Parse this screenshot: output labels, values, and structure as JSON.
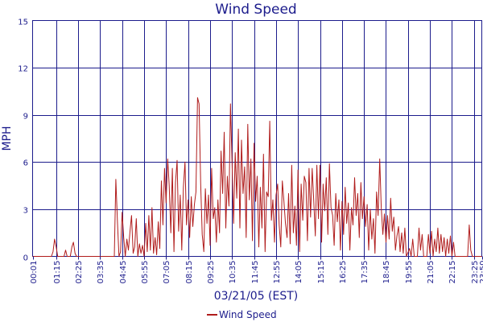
{
  "chart_data": {
    "type": "line",
    "title": "Wind Speed",
    "xlabel": "03/21/05 (EST)",
    "ylabel": "MPH",
    "ylim": [
      0,
      15
    ],
    "yticks": [
      "0",
      "3",
      "6",
      "9",
      "12",
      "15"
    ],
    "xticks": [
      "00:01",
      "01:15",
      "02:25",
      "03:35",
      "04:45",
      "05:55",
      "07:05",
      "08:15",
      "09:25",
      "10:35",
      "11:45",
      "12:55",
      "14:05",
      "15:15",
      "16:25",
      "17:35",
      "18:45",
      "19:55",
      "21:05",
      "22:15",
      "23:25",
      "23:50"
    ],
    "grid": true,
    "legend_position": "bottom",
    "colors": {
      "series": "#b01c1c",
      "grid": "#1c1c8c",
      "text": "#1c1c8c"
    },
    "series": [
      {
        "name": "Wind Speed",
        "points": [
          [
            "00:00",
            0
          ],
          [
            "01:00",
            0
          ],
          [
            "01:05",
            0.3
          ],
          [
            "01:10",
            1.1
          ],
          [
            "01:15",
            0.6
          ],
          [
            "01:20",
            0
          ],
          [
            "01:40",
            0
          ],
          [
            "01:45",
            0.4
          ],
          [
            "01:50",
            0
          ],
          [
            "02:00",
            0
          ],
          [
            "02:05",
            0.6
          ],
          [
            "02:10",
            0.9
          ],
          [
            "02:15",
            0.2
          ],
          [
            "02:20",
            0
          ],
          [
            "04:20",
            0
          ],
          [
            "04:25",
            4.9
          ],
          [
            "04:30",
            2.2
          ],
          [
            "04:35",
            0
          ],
          [
            "04:40",
            0.3
          ],
          [
            "04:45",
            2.8
          ],
          [
            "04:50",
            1.2
          ],
          [
            "04:55",
            0
          ],
          [
            "05:00",
            1.1
          ],
          [
            "05:05",
            0.4
          ],
          [
            "05:10",
            1.6
          ],
          [
            "05:15",
            2.6
          ],
          [
            "05:20",
            0.2
          ],
          [
            "05:25",
            0.6
          ],
          [
            "05:30",
            2.4
          ],
          [
            "05:35",
            0
          ],
          [
            "05:40",
            0.8
          ],
          [
            "05:45",
            0.2
          ],
          [
            "05:50",
            0.7
          ],
          [
            "05:55",
            0
          ],
          [
            "06:00",
            2.1
          ],
          [
            "06:05",
            0.3
          ],
          [
            "06:10",
            2.6
          ],
          [
            "06:15",
            0.4
          ],
          [
            "06:20",
            3.1
          ],
          [
            "06:25",
            0.2
          ],
          [
            "06:30",
            1.2
          ],
          [
            "06:35",
            0.1
          ],
          [
            "06:40",
            2.2
          ],
          [
            "06:45",
            0.5
          ],
          [
            "06:50",
            4.8
          ],
          [
            "06:55",
            2.0
          ],
          [
            "07:00",
            5.6
          ],
          [
            "07:05",
            3.4
          ],
          [
            "07:10",
            6.2
          ],
          [
            "07:15",
            4.5
          ],
          [
            "07:20",
            1.5
          ],
          [
            "07:25",
            5.6
          ],
          [
            "07:30",
            0.3
          ],
          [
            "07:35",
            4.7
          ],
          [
            "07:40",
            6.1
          ],
          [
            "07:45",
            1.6
          ],
          [
            "07:50",
            3.9
          ],
          [
            "07:55",
            0.4
          ],
          [
            "08:00",
            4.4
          ],
          [
            "08:05",
            6.0
          ],
          [
            "08:10",
            2.0
          ],
          [
            "08:15",
            3.6
          ],
          [
            "08:20",
            1.2
          ],
          [
            "08:25",
            3.8
          ],
          [
            "08:30",
            1.9
          ],
          [
            "08:35",
            3.3
          ],
          [
            "08:40",
            4.1
          ],
          [
            "08:45",
            10.1
          ],
          [
            "08:50",
            9.7
          ],
          [
            "08:55",
            4.6
          ],
          [
            "09:00",
            1.4
          ],
          [
            "09:05",
            0.3
          ],
          [
            "09:10",
            4.3
          ],
          [
            "09:15",
            2.1
          ],
          [
            "09:20",
            3.9
          ],
          [
            "09:25",
            0.7
          ],
          [
            "09:30",
            5.6
          ],
          [
            "09:35",
            2.4
          ],
          [
            "09:40",
            3.1
          ],
          [
            "09:45",
            0.9
          ],
          [
            "09:50",
            3.6
          ],
          [
            "09:55",
            1.5
          ],
          [
            "10:00",
            6.7
          ],
          [
            "10:05",
            4.0
          ],
          [
            "10:10",
            7.9
          ],
          [
            "10:15",
            1.8
          ],
          [
            "10:20",
            5.1
          ],
          [
            "10:25",
            3.2
          ],
          [
            "10:30",
            9.7
          ],
          [
            "10:35",
            5.9
          ],
          [
            "10:40",
            2.1
          ],
          [
            "10:45",
            6.6
          ],
          [
            "10:50",
            3.7
          ],
          [
            "10:55",
            8.1
          ],
          [
            "11:00",
            1.8
          ],
          [
            "11:05",
            7.4
          ],
          [
            "11:10",
            4.0
          ],
          [
            "11:15",
            5.7
          ],
          [
            "11:20",
            1.2
          ],
          [
            "11:25",
            8.4
          ],
          [
            "11:30",
            3.6
          ],
          [
            "11:35",
            6.2
          ],
          [
            "11:40",
            1.0
          ],
          [
            "11:45",
            7.2
          ],
          [
            "11:50",
            3.5
          ],
          [
            "11:55",
            5.1
          ],
          [
            "12:00",
            0.6
          ],
          [
            "12:05",
            4.4
          ],
          [
            "12:10",
            1.8
          ],
          [
            "12:15",
            6.5
          ],
          [
            "12:20",
            0.3
          ],
          [
            "12:25",
            4.1
          ],
          [
            "12:30",
            3.8
          ],
          [
            "12:35",
            8.6
          ],
          [
            "12:40",
            2.3
          ],
          [
            "12:45",
            3.6
          ],
          [
            "12:50",
            0.9
          ],
          [
            "12:55",
            3.9
          ],
          [
            "13:00",
            4.6
          ],
          [
            "13:05",
            2.0
          ],
          [
            "13:10",
            0.6
          ],
          [
            "13:15",
            4.8
          ],
          [
            "13:20",
            3.5
          ],
          [
            "13:25",
            2.1
          ],
          [
            "13:30",
            1.2
          ],
          [
            "13:35",
            4.0
          ],
          [
            "13:40",
            0.8
          ],
          [
            "13:45",
            5.8
          ],
          [
            "13:50",
            1.5
          ],
          [
            "13:55",
            3.2
          ],
          [
            "14:00",
            0.7
          ],
          [
            "14:05",
            5.5
          ],
          [
            "14:10",
            0.3
          ],
          [
            "14:15",
            4.6
          ],
          [
            "14:20",
            2.3
          ],
          [
            "14:25",
            5.1
          ],
          [
            "14:30",
            4.7
          ],
          [
            "14:35",
            1.0
          ],
          [
            "14:40",
            5.6
          ],
          [
            "14:45",
            2.5
          ],
          [
            "14:50",
            5.6
          ],
          [
            "14:55",
            3.6
          ],
          [
            "15:00",
            1.3
          ],
          [
            "15:05",
            5.8
          ],
          [
            "15:10",
            2.4
          ],
          [
            "15:15",
            5.8
          ],
          [
            "15:20",
            0.9
          ],
          [
            "15:25",
            4.6
          ],
          [
            "15:30",
            2.9
          ],
          [
            "15:35",
            5.0
          ],
          [
            "15:40",
            1.4
          ],
          [
            "15:45",
            5.9
          ],
          [
            "15:50",
            3.1
          ],
          [
            "15:55",
            2.6
          ],
          [
            "16:00",
            0.7
          ],
          [
            "16:05",
            4.0
          ],
          [
            "16:10",
            2.2
          ],
          [
            "16:15",
            3.6
          ],
          [
            "16:20",
            0.4
          ],
          [
            "16:25",
            3.5
          ],
          [
            "16:30",
            1.4
          ],
          [
            "16:35",
            4.4
          ],
          [
            "16:40",
            2.1
          ],
          [
            "16:45",
            3.4
          ],
          [
            "16:50",
            0.4
          ],
          [
            "16:55",
            3.1
          ],
          [
            "17:00",
            2.0
          ],
          [
            "17:05",
            5.0
          ],
          [
            "17:10",
            2.6
          ],
          [
            "17:15",
            4.0
          ],
          [
            "17:20",
            1.2
          ],
          [
            "17:25",
            4.7
          ],
          [
            "17:30",
            2.4
          ],
          [
            "17:35",
            3.8
          ],
          [
            "17:40",
            1.9
          ],
          [
            "17:45",
            3.3
          ],
          [
            "17:50",
            0.4
          ],
          [
            "17:55",
            3.0
          ],
          [
            "18:00",
            1.1
          ],
          [
            "18:05",
            2.4
          ],
          [
            "18:10",
            0.2
          ],
          [
            "18:15",
            4.1
          ],
          [
            "18:20",
            2.6
          ],
          [
            "18:25",
            6.2
          ],
          [
            "18:30",
            3.1
          ],
          [
            "18:35",
            1.4
          ],
          [
            "18:40",
            2.7
          ],
          [
            "18:45",
            0.9
          ],
          [
            "18:50",
            2.6
          ],
          [
            "18:55",
            1.1
          ],
          [
            "19:00",
            3.7
          ],
          [
            "19:05",
            1.6
          ],
          [
            "19:10",
            2.5
          ],
          [
            "19:15",
            0.4
          ],
          [
            "19:20",
            1.3
          ],
          [
            "19:25",
            1.9
          ],
          [
            "19:30",
            0.3
          ],
          [
            "19:35",
            1.5
          ],
          [
            "19:40",
            0.2
          ],
          [
            "19:45",
            1.8
          ],
          [
            "19:50",
            0
          ],
          [
            "20:00",
            0.5
          ],
          [
            "20:05",
            0
          ],
          [
            "20:10",
            1.1
          ],
          [
            "20:15",
            0
          ],
          [
            "20:25",
            0
          ],
          [
            "20:30",
            1.8
          ],
          [
            "20:35",
            0.4
          ],
          [
            "20:40",
            1.4
          ],
          [
            "20:45",
            0
          ],
          [
            "20:55",
            0
          ],
          [
            "21:00",
            1.4
          ],
          [
            "21:05",
            0.2
          ],
          [
            "21:10",
            1.6
          ],
          [
            "21:15",
            0
          ],
          [
            "21:20",
            1.1
          ],
          [
            "21:25",
            0.3
          ],
          [
            "21:30",
            1.8
          ],
          [
            "21:35",
            0.2
          ],
          [
            "21:40",
            1.4
          ],
          [
            "21:45",
            0.3
          ],
          [
            "21:50",
            1.2
          ],
          [
            "21:55",
            0
          ],
          [
            "22:00",
            1.1
          ],
          [
            "22:05",
            0.2
          ],
          [
            "22:10",
            1.3
          ],
          [
            "22:15",
            0
          ],
          [
            "22:20",
            0.9
          ],
          [
            "22:25",
            0
          ],
          [
            "23:05",
            0
          ],
          [
            "23:10",
            2.0
          ],
          [
            "23:15",
            0.4
          ],
          [
            "23:20",
            0
          ],
          [
            "23:50",
            0
          ]
        ]
      }
    ]
  }
}
